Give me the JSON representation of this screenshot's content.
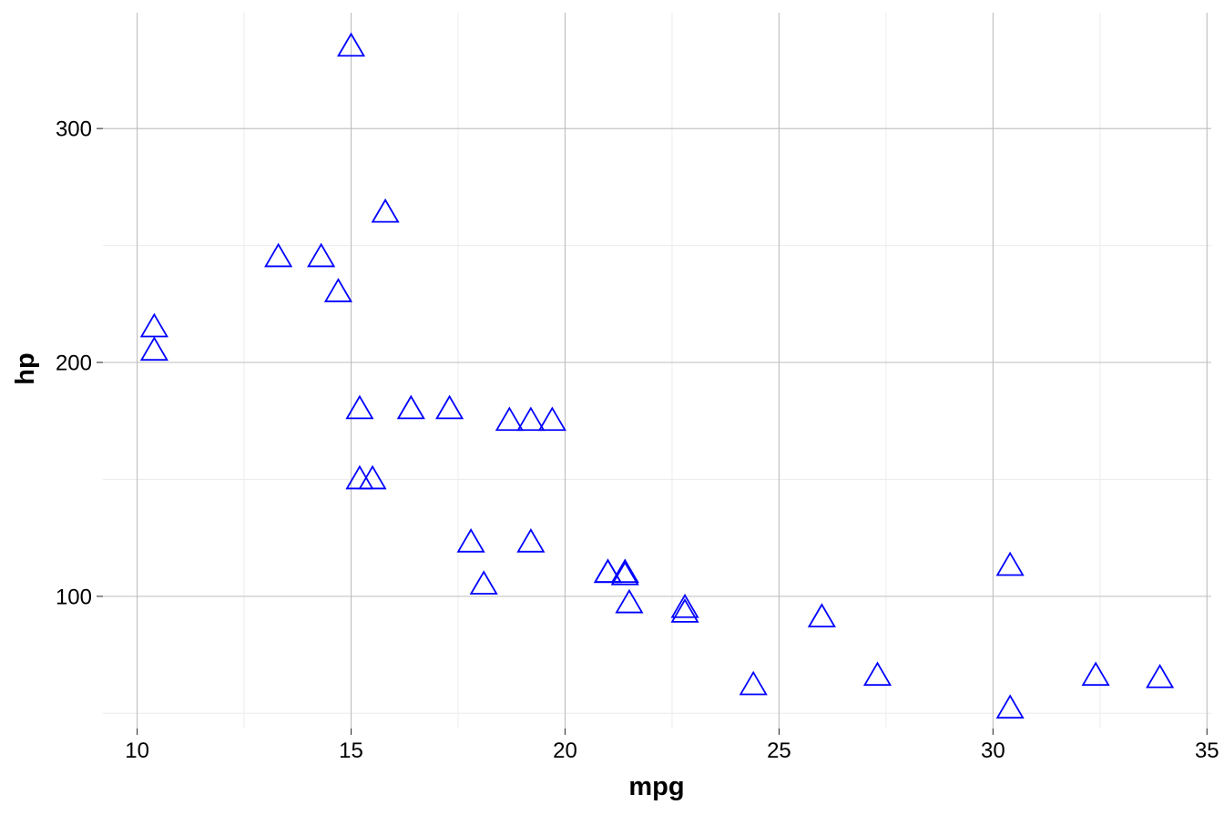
{
  "chart_data": {
    "type": "scatter",
    "title": "",
    "xlabel": "mpg",
    "ylabel": "hp",
    "xlim": [
      9.2,
      35.1
    ],
    "ylim": [
      43.5,
      349.5
    ],
    "x_ticks": [
      10,
      15,
      20,
      25,
      30,
      35
    ],
    "x_tick_labels": [
      "10",
      "15",
      "20",
      "25",
      "30",
      "35"
    ],
    "x_minor_ticks": [
      12.5,
      17.5,
      22.5,
      27.5,
      32.5
    ],
    "y_ticks": [
      100,
      200,
      300
    ],
    "y_tick_labels": [
      "100",
      "200",
      "300"
    ],
    "y_minor_ticks": [
      50,
      150,
      250
    ],
    "grid": true,
    "legend": "none",
    "marker": "open-triangle",
    "marker_color": "#0000ff",
    "grid_major_color": "#bdbdbd",
    "grid_minor_color": "#ececec",
    "series": [
      {
        "points": [
          {
            "x": 21.0,
            "y": 110
          },
          {
            "x": 21.0,
            "y": 110
          },
          {
            "x": 22.8,
            "y": 93
          },
          {
            "x": 21.4,
            "y": 110
          },
          {
            "x": 18.7,
            "y": 175
          },
          {
            "x": 18.1,
            "y": 105
          },
          {
            "x": 14.3,
            "y": 245
          },
          {
            "x": 24.4,
            "y": 62
          },
          {
            "x": 22.8,
            "y": 95
          },
          {
            "x": 19.2,
            "y": 123
          },
          {
            "x": 17.8,
            "y": 123
          },
          {
            "x": 16.4,
            "y": 180
          },
          {
            "x": 17.3,
            "y": 180
          },
          {
            "x": 15.2,
            "y": 180
          },
          {
            "x": 10.4,
            "y": 205
          },
          {
            "x": 10.4,
            "y": 215
          },
          {
            "x": 14.7,
            "y": 230
          },
          {
            "x": 32.4,
            "y": 66
          },
          {
            "x": 30.4,
            "y": 52
          },
          {
            "x": 33.9,
            "y": 65
          },
          {
            "x": 21.5,
            "y": 97
          },
          {
            "x": 15.5,
            "y": 150
          },
          {
            "x": 15.2,
            "y": 150
          },
          {
            "x": 13.3,
            "y": 245
          },
          {
            "x": 19.2,
            "y": 175
          },
          {
            "x": 27.3,
            "y": 66
          },
          {
            "x": 26.0,
            "y": 91
          },
          {
            "x": 30.4,
            "y": 113
          },
          {
            "x": 15.8,
            "y": 264
          },
          {
            "x": 19.7,
            "y": 175
          },
          {
            "x": 15.0,
            "y": 335
          },
          {
            "x": 21.4,
            "y": 109
          }
        ]
      }
    ]
  }
}
